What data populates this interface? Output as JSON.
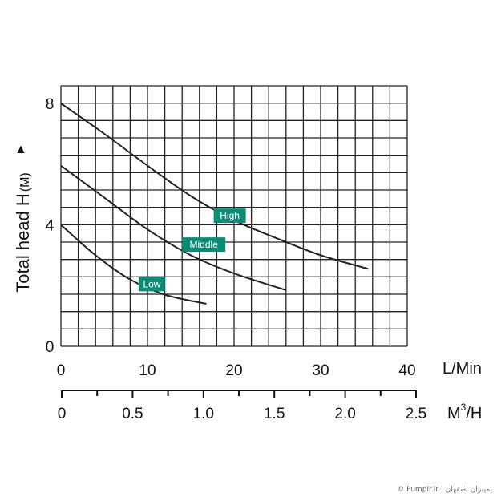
{
  "chart_data": {
    "type": "line",
    "ylabel": "Total head H",
    "ylabel_unit": "(M)",
    "xlabel": "L/Min",
    "xlabel_secondary_text": "M",
    "xlabel_secondary_sup": "3",
    "xlabel_secondary_suffix": "/H",
    "xlim": [
      0,
      40
    ],
    "ylim": [
      0,
      8
    ],
    "x_ticks": [
      0,
      10,
      20,
      30,
      40
    ],
    "x_tick_labels": [
      "0",
      "10",
      "20",
      "30",
      "40"
    ],
    "y_ticks": [
      0,
      4,
      8
    ],
    "y_tick_labels": [
      "0",
      "4",
      "8"
    ],
    "secondary_x_ticks": [
      0,
      0.5,
      1.0,
      1.5,
      2.0,
      2.5
    ],
    "secondary_x_tick_labels": [
      "0",
      "0.5",
      "1.0",
      "1.5",
      "2.0",
      "2.5"
    ],
    "secondary_xlim": [
      0,
      2.5
    ],
    "grid": true,
    "series": [
      {
        "name": "High",
        "color": "#222222",
        "x": [
          0,
          5,
          10,
          15,
          20,
          25,
          30,
          35.5
        ],
        "y": [
          8.0,
          7.0,
          5.95,
          4.95,
          4.15,
          3.55,
          3.0,
          2.55
        ]
      },
      {
        "name": "Middle",
        "color": "#222222",
        "x": [
          0,
          5,
          10,
          15,
          20,
          26
        ],
        "y": [
          5.95,
          4.9,
          3.85,
          3.0,
          2.4,
          1.85
        ]
      },
      {
        "name": "Low",
        "color": "#222222",
        "x": [
          0,
          4,
          8,
          12,
          16.8
        ],
        "y": [
          4.0,
          3.0,
          2.2,
          1.7,
          1.4
        ]
      }
    ],
    "label_box_color": "#0c8c74",
    "label_anchors": {
      "High": {
        "x": 19.5,
        "y": 4.3
      },
      "Middle": {
        "x": 16.5,
        "y": 3.35
      },
      "Low": {
        "x": 10.5,
        "y": 2.05
      }
    }
  },
  "watermark": "© Pumpir.ir | پمپیران اصفهان"
}
